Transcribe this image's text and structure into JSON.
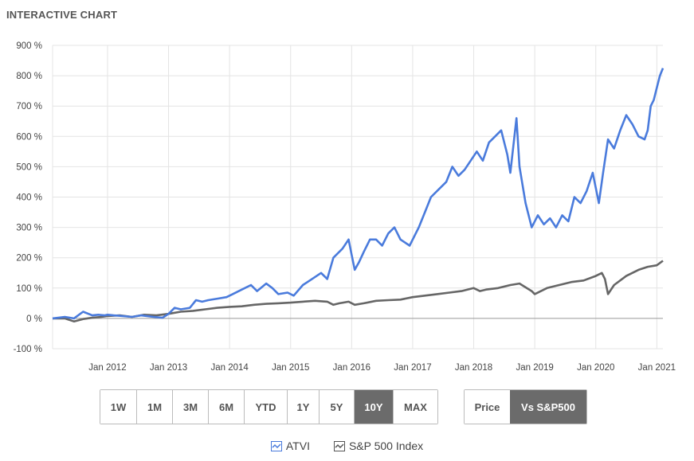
{
  "header": {
    "title": "INTERACTIVE CHART"
  },
  "range_buttons": [
    {
      "label": "1W",
      "active": false
    },
    {
      "label": "1M",
      "active": false
    },
    {
      "label": "3M",
      "active": false
    },
    {
      "label": "6M",
      "active": false
    },
    {
      "label": "YTD",
      "active": false
    },
    {
      "label": "1Y",
      "active": false
    },
    {
      "label": "5Y",
      "active": false
    },
    {
      "label": "10Y",
      "active": true
    },
    {
      "label": "MAX",
      "active": false
    }
  ],
  "mode_buttons": [
    {
      "label": "Price",
      "active": false
    },
    {
      "label": "Vs S&P500",
      "active": true
    }
  ],
  "colors": {
    "atvi": "#4a7bdc",
    "sp500": "#666666",
    "grid": "#e4e4e4",
    "active_button": "#6b6b6b"
  },
  "chart_data": {
    "type": "line",
    "title": "",
    "xlabel": "",
    "ylabel": "",
    "ylim": [
      -100,
      900
    ],
    "yticks": [
      -100,
      0,
      100,
      200,
      300,
      400,
      500,
      600,
      700,
      800,
      900
    ],
    "ytick_labels": [
      "-100 %",
      "0 %",
      "100 %",
      "200 %",
      "300 %",
      "400 %",
      "500 %",
      "600 %",
      "700 %",
      "800 %",
      "900 %"
    ],
    "xlim": [
      2011.1,
      2021.1
    ],
    "xticks": [
      2012,
      2013,
      2014,
      2015,
      2016,
      2017,
      2018,
      2019,
      2020,
      2021
    ],
    "xtick_labels": [
      "Jan 2012",
      "Jan 2013",
      "Jan 2014",
      "Jan 2015",
      "Jan 2016",
      "Jan 2017",
      "Jan 2018",
      "Jan 2019",
      "Jan 2020",
      "Jan 2021"
    ],
    "grid": true,
    "legend": "bottom",
    "series": [
      {
        "name": "ATVI",
        "color": "#4a7bdc",
        "x": [
          2011.1,
          2011.3,
          2011.45,
          2011.6,
          2011.75,
          2011.85,
          2011.95,
          2012.0,
          2012.1,
          2012.25,
          2012.4,
          2012.55,
          2012.75,
          2012.9,
          2013.0,
          2013.1,
          2013.2,
          2013.35,
          2013.45,
          2013.55,
          2013.65,
          2013.8,
          2013.95,
          2014.05,
          2014.2,
          2014.35,
          2014.45,
          2014.6,
          2014.7,
          2014.8,
          2014.95,
          2015.05,
          2015.2,
          2015.35,
          2015.5,
          2015.6,
          2015.7,
          2015.85,
          2015.95,
          2016.0,
          2016.05,
          2016.12,
          2016.2,
          2016.3,
          2016.4,
          2016.5,
          2016.6,
          2016.7,
          2016.8,
          2016.95,
          2017.1,
          2017.2,
          2017.3,
          2017.45,
          2017.55,
          2017.65,
          2017.75,
          2017.85,
          2017.95,
          2018.05,
          2018.15,
          2018.25,
          2018.35,
          2018.45,
          2018.55,
          2018.6,
          2018.7,
          2018.75,
          2018.85,
          2018.95,
          2019.05,
          2019.15,
          2019.25,
          2019.35,
          2019.45,
          2019.55,
          2019.65,
          2019.75,
          2019.85,
          2019.95,
          2020.05,
          2020.12,
          2020.2,
          2020.3,
          2020.4,
          2020.5,
          2020.6,
          2020.7,
          2020.8,
          2020.85,
          2020.9,
          2020.95,
          2021.0,
          2021.05,
          2021.1
        ],
        "values": [
          0,
          5,
          0,
          22,
          10,
          12,
          10,
          12,
          10,
          8,
          5,
          10,
          5,
          2,
          15,
          35,
          30,
          35,
          60,
          55,
          60,
          65,
          70,
          80,
          95,
          110,
          90,
          115,
          100,
          80,
          85,
          75,
          110,
          130,
          150,
          130,
          200,
          230,
          260,
          210,
          160,
          185,
          220,
          260,
          260,
          240,
          280,
          300,
          260,
          240,
          300,
          350,
          400,
          430,
          450,
          500,
          470,
          490,
          520,
          550,
          520,
          580,
          600,
          620,
          540,
          480,
          660,
          500,
          380,
          300,
          340,
          310,
          330,
          300,
          340,
          320,
          400,
          380,
          420,
          480,
          380,
          480,
          590,
          560,
          620,
          670,
          640,
          600,
          590,
          620,
          700,
          720,
          760,
          800,
          825
        ]
      },
      {
        "name": "S&P 500 Index",
        "color": "#666666",
        "x": [
          2011.1,
          2011.3,
          2011.45,
          2011.6,
          2011.75,
          2011.9,
          2012.0,
          2012.2,
          2012.4,
          2012.6,
          2012.8,
          2013.0,
          2013.2,
          2013.4,
          2013.6,
          2013.8,
          2014.0,
          2014.2,
          2014.4,
          2014.6,
          2014.8,
          2015.0,
          2015.2,
          2015.4,
          2015.6,
          2015.7,
          2015.8,
          2015.95,
          2016.05,
          2016.2,
          2016.4,
          2016.6,
          2016.8,
          2017.0,
          2017.2,
          2017.4,
          2017.6,
          2017.8,
          2018.0,
          2018.1,
          2018.2,
          2018.4,
          2018.6,
          2018.75,
          2018.95,
          2019.0,
          2019.2,
          2019.4,
          2019.6,
          2019.8,
          2020.0,
          2020.1,
          2020.15,
          2020.2,
          2020.3,
          2020.5,
          2020.7,
          2020.85,
          2021.0,
          2021.1
        ],
        "values": [
          0,
          0,
          -10,
          -2,
          2,
          5,
          8,
          10,
          5,
          12,
          10,
          15,
          22,
          25,
          30,
          35,
          38,
          40,
          45,
          48,
          50,
          52,
          55,
          58,
          55,
          45,
          50,
          55,
          45,
          50,
          58,
          60,
          62,
          70,
          75,
          80,
          85,
          90,
          100,
          90,
          95,
          100,
          110,
          115,
          90,
          80,
          100,
          110,
          120,
          125,
          140,
          150,
          130,
          80,
          110,
          140,
          160,
          170,
          175,
          190
        ]
      }
    ]
  }
}
